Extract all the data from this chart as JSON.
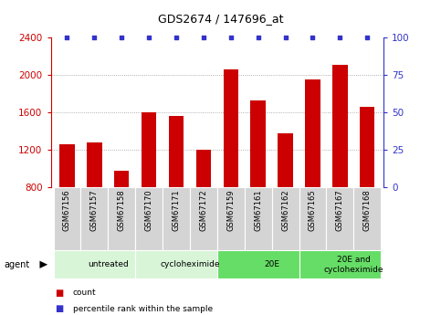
{
  "title": "GDS2674 / 147696_at",
  "samples": [
    "GSM67156",
    "GSM67157",
    "GSM67158",
    "GSM67170",
    "GSM67171",
    "GSM67172",
    "GSM67159",
    "GSM67161",
    "GSM67162",
    "GSM67165",
    "GSM67167",
    "GSM67168"
  ],
  "counts": [
    1260,
    1280,
    980,
    1600,
    1560,
    1200,
    2060,
    1730,
    1380,
    1950,
    2110,
    1660
  ],
  "percentile_ranks": [
    100,
    100,
    100,
    100,
    100,
    100,
    100,
    100,
    100,
    100,
    100,
    100
  ],
  "bar_color": "#cc0000",
  "dot_color": "#3333cc",
  "ylim_left": [
    800,
    2400
  ],
  "ylim_right": [
    0,
    100
  ],
  "yticks_left": [
    800,
    1200,
    1600,
    2000,
    2400
  ],
  "yticks_right": [
    0,
    25,
    50,
    75,
    100
  ],
  "groups": [
    {
      "label": "untreated",
      "start": 0,
      "end": 3,
      "color": "#d8f5d8"
    },
    {
      "label": "cycloheximide",
      "start": 3,
      "end": 6,
      "color": "#d8f5d8"
    },
    {
      "label": "20E",
      "start": 6,
      "end": 9,
      "color": "#66dd66"
    },
    {
      "label": "20E and\ncycloheximide",
      "start": 9,
      "end": 12,
      "color": "#66dd66"
    }
  ],
  "legend_items": [
    {
      "label": "count",
      "color": "#cc0000"
    },
    {
      "label": "percentile rank within the sample",
      "color": "#3333cc"
    }
  ],
  "agent_label": "agent",
  "left_axis_color": "#cc0000",
  "right_axis_color": "#3333cc",
  "grid_color": "#999999",
  "bar_width": 0.55
}
